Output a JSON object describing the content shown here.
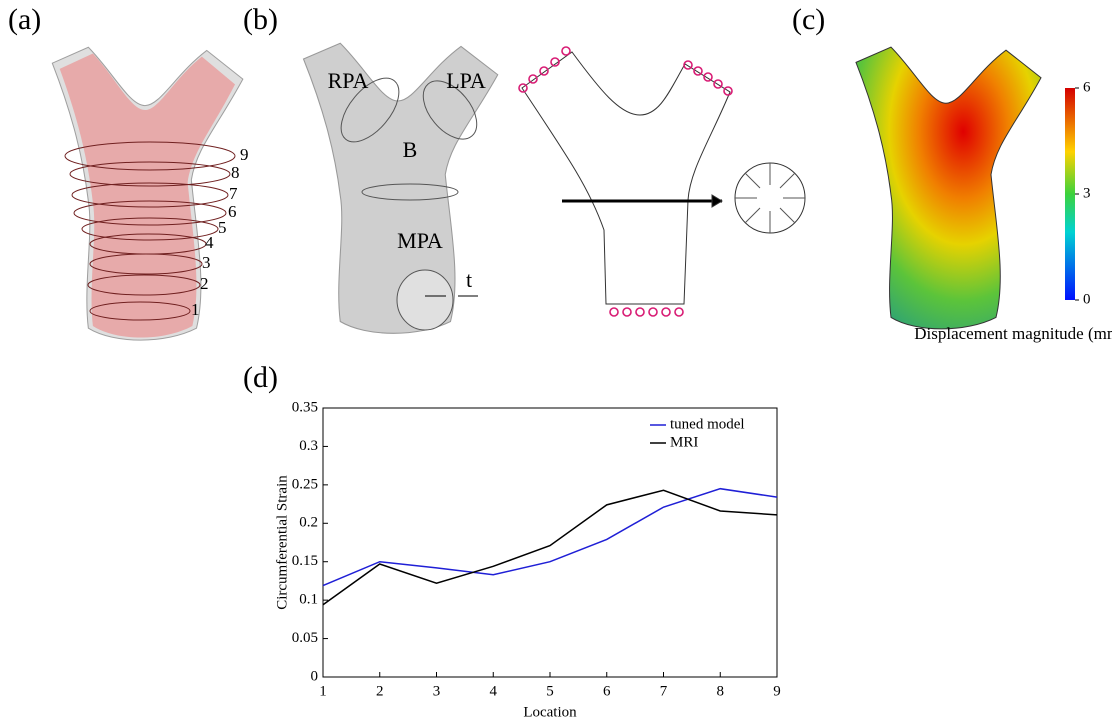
{
  "panels": {
    "a": {
      "label": "(a)",
      "location_labels": [
        "1",
        "2",
        "3",
        "4",
        "5",
        "6",
        "7",
        "8",
        "9"
      ]
    },
    "b": {
      "label": "(b)",
      "regions": [
        "RPA",
        "LPA",
        "B",
        "MPA"
      ],
      "thickness": "t"
    },
    "c": {
      "label": "(c)",
      "colorbar": {
        "lim": [
          0,
          6
        ],
        "ticks": [
          0,
          3,
          6
        ],
        "label": "Displacement magnitude (mm)"
      }
    },
    "d": {
      "label": "(d)"
    }
  },
  "chart_data": {
    "type": "line",
    "x": [
      1,
      2,
      3,
      4,
      5,
      6,
      7,
      8,
      9
    ],
    "xlabel": "Location",
    "ylabel": "Circumferential Strain",
    "xlim": [
      1,
      9
    ],
    "xticks": [
      1,
      2,
      3,
      4,
      5,
      6,
      7,
      8,
      9
    ],
    "ylim": [
      0,
      0.35
    ],
    "yticks": [
      0,
      0.05,
      0.1,
      0.15,
      0.2,
      0.25,
      0.3,
      0.35
    ],
    "legend": "upper-right",
    "series": [
      {
        "name": "tuned model",
        "color": "#1f1fd6",
        "values": [
          0.119,
          0.15,
          0.142,
          0.133,
          0.15,
          0.179,
          0.221,
          0.245,
          0.234
        ]
      },
      {
        "name": "MRI",
        "color": "#000000",
        "values": [
          0.094,
          0.147,
          0.122,
          0.144,
          0.171,
          0.224,
          0.243,
          0.216,
          0.211
        ]
      }
    ]
  }
}
